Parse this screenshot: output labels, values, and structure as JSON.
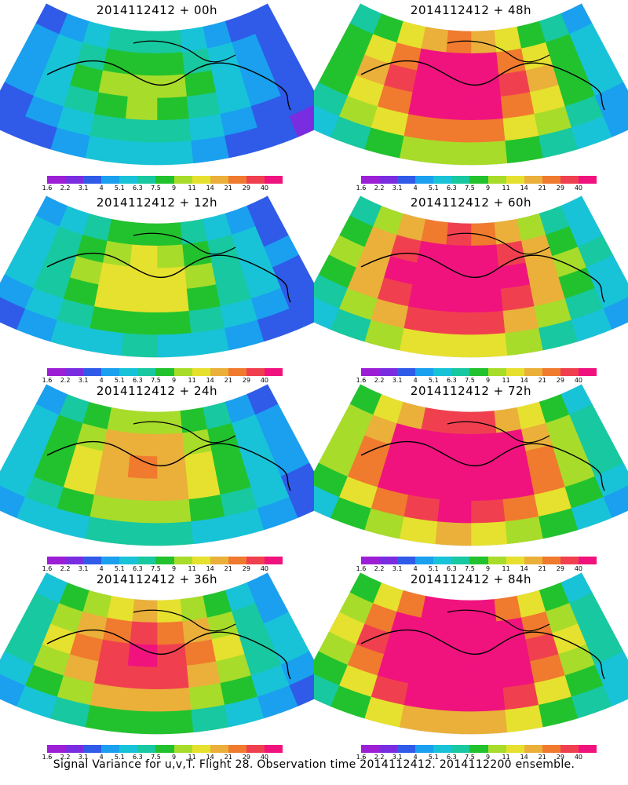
{
  "chart_data": {
    "type": "heatmap",
    "colorbar": {
      "labels": [
        "1.6",
        "2.2",
        "3.1",
        "4",
        "5.1",
        "6.3",
        "7.5",
        "9",
        "11",
        "14",
        "21",
        "29",
        "40"
      ],
      "colors": [
        "#9c1fd6",
        "#7a2de0",
        "#2f5be8",
        "#1aa0ef",
        "#18c3d8",
        "#18c8a0",
        "#22c22e",
        "#a8dc2a",
        "#e6e12e",
        "#eab03a",
        "#f07a2e",
        "#f0404f",
        "#f0137e"
      ]
    },
    "panels": [
      {
        "title": "2014112412 + 00h",
        "intensity": 0.25
      },
      {
        "title": "2014112412 + 12h",
        "intensity": 0.35
      },
      {
        "title": "2014112412 + 24h",
        "intensity": 0.45
      },
      {
        "title": "2014112412 + 36h",
        "intensity": 0.6
      },
      {
        "title": "2014112412 + 48h",
        "intensity": 0.7
      },
      {
        "title": "2014112412 + 60h",
        "intensity": 0.8
      },
      {
        "title": "2014112412 + 72h",
        "intensity": 0.88
      },
      {
        "title": "2014112412 + 84h",
        "intensity": 0.95
      }
    ]
  },
  "footer": "Signal Variance for u,v,T. Flight 28. Observation time 2014112412. 2014112200 ensemble."
}
